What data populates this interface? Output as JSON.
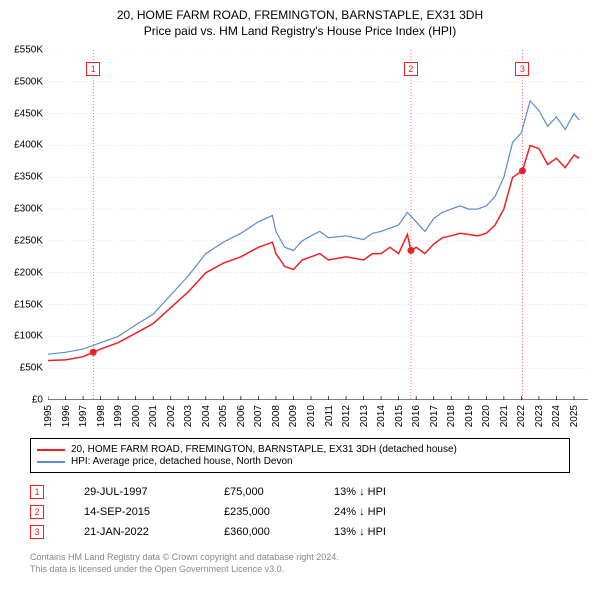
{
  "title_line1": "20, HOME FARM ROAD, FREMINGTON, BARNSTAPLE, EX31 3DH",
  "title_line2": "Price paid vs. HM Land Registry's House Price Index (HPI)",
  "chart": {
    "type": "line",
    "background_color": "#ffffff",
    "grid_color": "#cccccc",
    "vline_color": "#dddddd",
    "xlim": [
      1995,
      2025.8
    ],
    "ylim": [
      0,
      550000
    ],
    "ytick_step": 50000,
    "yticks": [
      "£0",
      "£50K",
      "£100K",
      "£150K",
      "£200K",
      "£250K",
      "£300K",
      "£350K",
      "£400K",
      "£450K",
      "£500K",
      "£550K"
    ],
    "xticks": [
      1995,
      1996,
      1997,
      1998,
      1999,
      2000,
      2001,
      2002,
      2003,
      2004,
      2005,
      2006,
      2007,
      2008,
      2009,
      2010,
      2011,
      2012,
      2013,
      2014,
      2015,
      2016,
      2017,
      2018,
      2019,
      2020,
      2021,
      2022,
      2023,
      2024,
      2025
    ],
    "label_fontsize": 10,
    "series": [
      {
        "name": "property",
        "label": "20, HOME FARM ROAD, FREMINGTON, BARNSTAPLE, EX31 3DH (detached house)",
        "color": "#ed2024",
        "line_width": 1.5,
        "data": [
          [
            1995,
            62000
          ],
          [
            1996,
            63000
          ],
          [
            1997,
            68000
          ],
          [
            1997.58,
            75000
          ],
          [
            1998,
            80000
          ],
          [
            1999,
            90000
          ],
          [
            2000,
            105000
          ],
          [
            2001,
            120000
          ],
          [
            2002,
            145000
          ],
          [
            2003,
            170000
          ],
          [
            2004,
            200000
          ],
          [
            2005,
            215000
          ],
          [
            2006,
            225000
          ],
          [
            2007,
            240000
          ],
          [
            2007.8,
            248000
          ],
          [
            2008,
            230000
          ],
          [
            2008.5,
            210000
          ],
          [
            2009,
            205000
          ],
          [
            2009.5,
            220000
          ],
          [
            2010,
            225000
          ],
          [
            2010.5,
            230000
          ],
          [
            2011,
            220000
          ],
          [
            2012,
            225000
          ],
          [
            2013,
            220000
          ],
          [
            2013.5,
            230000
          ],
          [
            2014,
            230000
          ],
          [
            2014.5,
            240000
          ],
          [
            2015,
            230000
          ],
          [
            2015.5,
            260000
          ],
          [
            2015.7,
            235000
          ],
          [
            2016,
            240000
          ],
          [
            2016.5,
            230000
          ],
          [
            2017,
            245000
          ],
          [
            2017.5,
            255000
          ],
          [
            2018,
            258000
          ],
          [
            2018.5,
            262000
          ],
          [
            2019,
            260000
          ],
          [
            2019.5,
            258000
          ],
          [
            2020,
            262000
          ],
          [
            2020.5,
            275000
          ],
          [
            2021,
            300000
          ],
          [
            2021.5,
            350000
          ],
          [
            2022.06,
            360000
          ],
          [
            2022.5,
            400000
          ],
          [
            2023,
            395000
          ],
          [
            2023.5,
            370000
          ],
          [
            2024,
            380000
          ],
          [
            2024.5,
            365000
          ],
          [
            2025,
            385000
          ],
          [
            2025.3,
            380000
          ]
        ]
      },
      {
        "name": "hpi",
        "label": "HPI: Average price, detached house, North Devon",
        "color": "#5b8dcb",
        "line_width": 1.2,
        "data": [
          [
            1995,
            72000
          ],
          [
            1996,
            75000
          ],
          [
            1997,
            80000
          ],
          [
            1998,
            90000
          ],
          [
            1999,
            100000
          ],
          [
            2000,
            118000
          ],
          [
            2001,
            135000
          ],
          [
            2002,
            165000
          ],
          [
            2003,
            195000
          ],
          [
            2004,
            230000
          ],
          [
            2005,
            248000
          ],
          [
            2006,
            262000
          ],
          [
            2007,
            280000
          ],
          [
            2007.8,
            290000
          ],
          [
            2008,
            265000
          ],
          [
            2008.5,
            240000
          ],
          [
            2009,
            235000
          ],
          [
            2009.5,
            250000
          ],
          [
            2010,
            258000
          ],
          [
            2010.5,
            265000
          ],
          [
            2011,
            255000
          ],
          [
            2012,
            258000
          ],
          [
            2013,
            252000
          ],
          [
            2013.5,
            262000
          ],
          [
            2014,
            265000
          ],
          [
            2015,
            275000
          ],
          [
            2015.5,
            295000
          ],
          [
            2016,
            280000
          ],
          [
            2016.5,
            265000
          ],
          [
            2017,
            285000
          ],
          [
            2017.5,
            295000
          ],
          [
            2018,
            300000
          ],
          [
            2018.5,
            305000
          ],
          [
            2019,
            300000
          ],
          [
            2019.5,
            300000
          ],
          [
            2020,
            305000
          ],
          [
            2020.5,
            320000
          ],
          [
            2021,
            350000
          ],
          [
            2021.5,
            405000
          ],
          [
            2022,
            420000
          ],
          [
            2022.5,
            470000
          ],
          [
            2023,
            455000
          ],
          [
            2023.5,
            430000
          ],
          [
            2024,
            445000
          ],
          [
            2024.5,
            425000
          ],
          [
            2025,
            450000
          ],
          [
            2025.3,
            440000
          ]
        ]
      }
    ],
    "sale_markers": [
      {
        "num": "1",
        "x": 1997.58,
        "y": 75000,
        "color": "#ed2024"
      },
      {
        "num": "2",
        "x": 2015.7,
        "y": 235000,
        "color": "#ed2024"
      },
      {
        "num": "3",
        "x": 2022.06,
        "y": 360000,
        "color": "#ed2024"
      }
    ]
  },
  "legend": {
    "border_color": "#000000",
    "items": [
      {
        "color": "#ed2024",
        "text": "20, HOME FARM ROAD, FREMINGTON, BARNSTAPLE, EX31 3DH (detached house)"
      },
      {
        "color": "#5b8dcb",
        "text": "HPI: Average price, detached house, North Devon"
      }
    ]
  },
  "sales": [
    {
      "num": "1",
      "color": "#ed2024",
      "date": "29-JUL-1997",
      "price": "£75,000",
      "diff": "13% ↓ HPI"
    },
    {
      "num": "2",
      "color": "#ed2024",
      "date": "14-SEP-2015",
      "price": "£235,000",
      "diff": "24% ↓ HPI"
    },
    {
      "num": "3",
      "color": "#ed2024",
      "date": "21-JAN-2022",
      "price": "£360,000",
      "diff": "13% ↓ HPI"
    }
  ],
  "footer_line1": "Contains HM Land Registry data © Crown copyright and database right 2024.",
  "footer_line2": "This data is licensed under the Open Government Licence v3.0."
}
